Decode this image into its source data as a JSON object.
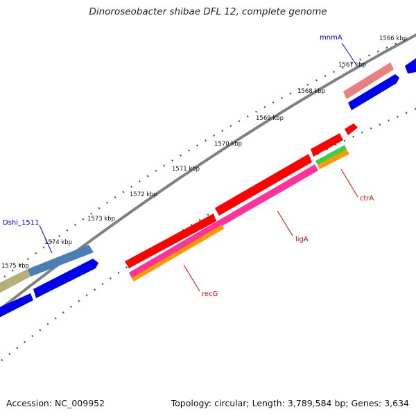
{
  "title": "Dinoroseobacter shibae DFL 12, complete genome",
  "accession": "Accession: NC_009952",
  "topology": "Topology: circular; Length: 3,789,584 bp; Genes: 3,634",
  "kbp_labels": [
    "1566 kbp",
    "1567 kbp",
    "1568 kbp",
    "1569 kbp",
    "1570 kbp",
    "1571 kbp",
    "1572 kbp",
    "1573 kbp",
    "1574 kbp",
    "1575 kbp"
  ],
  "gene_labels": {
    "mnmA": "mnmA",
    "dshi": "Dshi_1511",
    "ctrA": "ctrA",
    "ligA": "ligA",
    "recG": "recG"
  },
  "colors": {
    "backbone": "#808080",
    "tick": "#1e7a1e",
    "blue": "#0000ee",
    "red": "#ff0000",
    "pink": "#ff3399",
    "orange": "#ff9900",
    "green": "#44cc44",
    "steelblue": "#4a7fb5",
    "khaki": "#b5b07a",
    "salmon": "#e88080",
    "label_blue": "#0000cc",
    "label_red": "#dd0000"
  }
}
